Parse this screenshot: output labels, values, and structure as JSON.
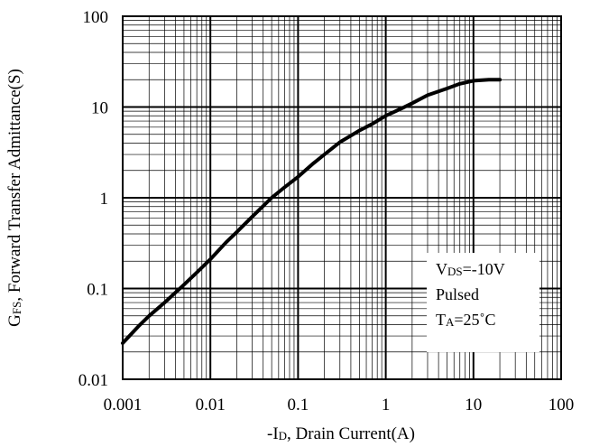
{
  "chart_data": {
    "type": "line",
    "x_scale": "log",
    "y_scale": "log",
    "xlim": [
      0.001,
      100
    ],
    "ylim": [
      0.01,
      100
    ],
    "grid": "on",
    "x_ticks": [
      "0.001",
      "0.01",
      "0.1",
      "1",
      "10",
      "100"
    ],
    "y_ticks": [
      "100",
      "10",
      "1",
      "0.1",
      "0.01"
    ],
    "xlabel": {
      "prefix": "-I",
      "sub": "D",
      "rest": ", Drain Current(A)"
    },
    "ylabel": {
      "prefix": "G",
      "sub": "FS",
      "rest": ", Forward Transfer Admittance(S)"
    },
    "annotations": {
      "line1": {
        "prefix": "V",
        "sub": "DS",
        "rest": "=-10V"
      },
      "line2": "Pulsed",
      "line3": {
        "prefix": "T",
        "sub": "A",
        "rest": "=25˚C"
      }
    },
    "series": [
      {
        "x": [
          0.001,
          0.0015,
          0.002,
          0.003,
          0.005,
          0.007,
          0.01,
          0.015,
          0.02,
          0.03,
          0.05,
          0.07,
          0.1,
          0.15,
          0.2,
          0.3,
          0.5,
          0.7,
          1,
          1.5,
          2,
          3,
          5,
          7,
          10,
          15,
          20
        ],
        "y": [
          0.025,
          0.038,
          0.05,
          0.07,
          0.11,
          0.15,
          0.21,
          0.32,
          0.42,
          0.62,
          1.0,
          1.3,
          1.7,
          2.4,
          3.0,
          4.1,
          5.5,
          6.5,
          8.0,
          9.6,
          11,
          13.5,
          16,
          18,
          19.5,
          20,
          20
        ]
      }
    ]
  }
}
